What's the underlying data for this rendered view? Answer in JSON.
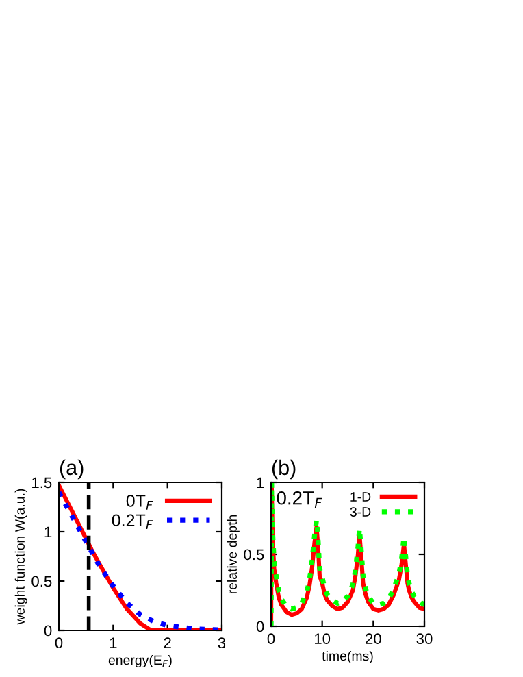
{
  "chart_data": [
    {
      "type": "line",
      "title": "(a)",
      "xlabel": "energy(E$_{F}$)",
      "ylabel": "weight function W(a.u.)",
      "xlim": [
        0,
        3
      ],
      "ylim": [
        0,
        1.5
      ],
      "xticks": [
        0,
        1,
        2,
        3
      ],
      "yticks": [
        0,
        0.5,
        1,
        1.5
      ],
      "grid": false,
      "legend": "top right",
      "ref_lines": [
        {
          "axis": "x",
          "value": 0.55,
          "color": "#000000",
          "line_style": "dashed"
        }
      ],
      "series": [
        {
          "name": "0T$_{F}$",
          "color": "#ff0000",
          "line_style": "solid",
          "x": [
            0,
            0.25,
            0.5,
            0.6,
            0.75,
            1.0,
            1.25,
            1.5,
            1.7,
            2.0,
            2.5,
            3.0
          ],
          "values": [
            1.47,
            1.2,
            0.93,
            0.82,
            0.67,
            0.43,
            0.22,
            0.07,
            0.0,
            0.0,
            0.0,
            0.0
          ]
        },
        {
          "name": "0.2T$_{F}$",
          "color": "#0000ff",
          "line_style": "dotted",
          "x": [
            0,
            0.25,
            0.5,
            0.75,
            1.0,
            1.25,
            1.5,
            1.75,
            2.0,
            2.5,
            3.0
          ],
          "values": [
            1.4,
            1.15,
            0.9,
            0.65,
            0.45,
            0.28,
            0.16,
            0.09,
            0.05,
            0.015,
            0.005
          ]
        }
      ]
    },
    {
      "type": "line",
      "title": "(b)",
      "xlabel": "time(ms)",
      "ylabel": "relative depth",
      "xlim": [
        0,
        30
      ],
      "ylim": [
        0,
        1
      ],
      "xticks": [
        0,
        10,
        20,
        30
      ],
      "yticks": [
        0,
        0.5,
        1
      ],
      "grid": false,
      "legend": "top right",
      "annotations": [
        {
          "text": "0.2T$_{F}$",
          "x": 1,
          "y": 0.88
        }
      ],
      "x": [
        0,
        0.1,
        0.3,
        0.6,
        1,
        1.5,
        2,
        3,
        4,
        5,
        6,
        7,
        7.5,
        8,
        8.5,
        8.9,
        9.2,
        9.5,
        10,
        10.5,
        11,
        12,
        13,
        14,
        15,
        16,
        16.5,
        17,
        17.3,
        17.6,
        18,
        18.5,
        19,
        20,
        21,
        22,
        23,
        24,
        25,
        25.5,
        26,
        26.3,
        26.7,
        27,
        27.5,
        28,
        29,
        30
      ],
      "series": [
        {
          "name": "1-D",
          "color": "#ff0000",
          "line_style": "solid",
          "values": [
            0,
            1,
            0.6,
            0.4,
            0.3,
            0.2,
            0.15,
            0.1,
            0.08,
            0.09,
            0.12,
            0.2,
            0.28,
            0.4,
            0.58,
            0.69,
            0.55,
            0.35,
            0.3,
            0.22,
            0.18,
            0.14,
            0.12,
            0.13,
            0.17,
            0.25,
            0.35,
            0.5,
            0.64,
            0.5,
            0.3,
            0.22,
            0.17,
            0.12,
            0.11,
            0.12,
            0.15,
            0.22,
            0.32,
            0.42,
            0.57,
            0.45,
            0.3,
            0.25,
            0.2,
            0.17,
            0.13,
            0.12
          ]
        },
        {
          "name": "3-D",
          "color": "#00ff00",
          "line_style": "dotted",
          "values": [
            0,
            1,
            0.65,
            0.45,
            0.35,
            0.25,
            0.19,
            0.14,
            0.12,
            0.13,
            0.16,
            0.24,
            0.32,
            0.45,
            0.63,
            0.74,
            0.6,
            0.4,
            0.34,
            0.26,
            0.22,
            0.18,
            0.16,
            0.17,
            0.21,
            0.29,
            0.39,
            0.55,
            0.68,
            0.55,
            0.35,
            0.26,
            0.21,
            0.16,
            0.15,
            0.16,
            0.19,
            0.26,
            0.36,
            0.46,
            0.62,
            0.5,
            0.35,
            0.3,
            0.24,
            0.21,
            0.17,
            0.15
          ]
        }
      ]
    }
  ]
}
